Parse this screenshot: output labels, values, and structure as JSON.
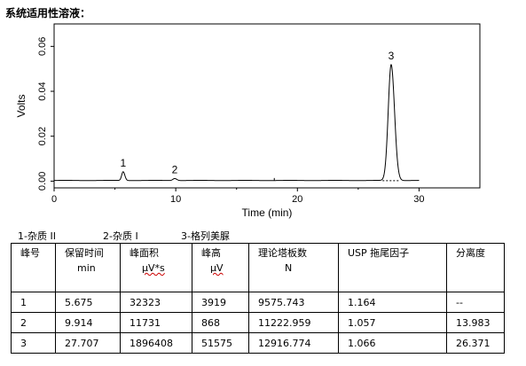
{
  "heading": "系统适用性溶液：",
  "chart_data": {
    "type": "line",
    "xlabel": "Time (min)",
    "ylabel": "Volts",
    "xlim": [
      0,
      35
    ],
    "ylim": [
      -0.003,
      0.07
    ],
    "x_ticks": [
      0,
      10,
      20,
      30
    ],
    "y_ticks": [
      0.0,
      0.02,
      0.04,
      0.06
    ],
    "y_tick_labels": [
      "0.00",
      "0.02",
      "0.04",
      "0.06"
    ],
    "x_tick_labels": [
      "0",
      "10",
      "20",
      "30"
    ],
    "series": [
      {
        "peaks": [
          {
            "label": "1",
            "rt": 5.675,
            "height_volts": 0.0039,
            "width_min": 0.12
          },
          {
            "label": "2",
            "rt": 9.914,
            "height_volts": 0.0009,
            "width_min": 0.15
          },
          {
            "label": "3",
            "rt": 27.707,
            "height_volts": 0.0516,
            "width_min": 0.24
          }
        ]
      }
    ]
  },
  "legend": [
    "1-杂质 II",
    "2-杂质 I",
    "3-格列美脲"
  ],
  "table": {
    "headers": [
      {
        "line1": "峰号",
        "line2": ""
      },
      {
        "line1": "保留时间",
        "line2": "min"
      },
      {
        "line1": "峰面积",
        "line2": "μV*s"
      },
      {
        "line1": "峰高",
        "line2": "μV"
      },
      {
        "line1": "理论塔板数",
        "line2": "N"
      },
      {
        "line1": "USP 拖尾因子",
        "line2": ""
      },
      {
        "line1": "分离度",
        "line2": ""
      }
    ],
    "rows": [
      [
        "1",
        "5.675",
        "32323",
        "3919",
        "9575.743",
        "1.164",
        "--"
      ],
      [
        "2",
        "9.914",
        "11731",
        "868",
        "11222.959",
        "1.057",
        "13.983"
      ],
      [
        "3",
        "27.707",
        "1896408",
        "51575",
        "12916.774",
        "1.066",
        "26.371"
      ]
    ]
  }
}
